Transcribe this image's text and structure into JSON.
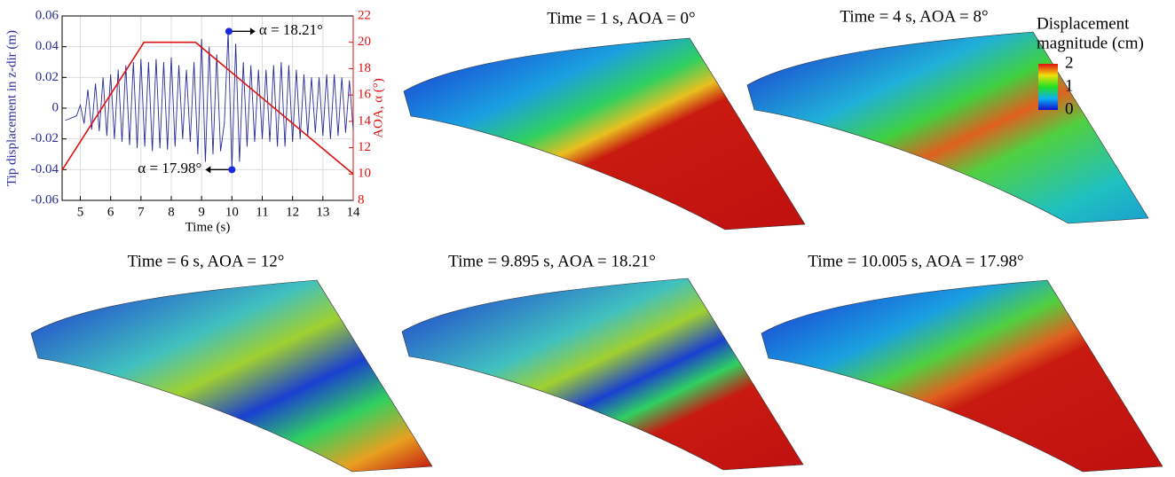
{
  "chart_data": {
    "type": "line",
    "xlabel": "Time (s)",
    "ylabel": "Tip displacement in z-dir (m)",
    "y2label": "AOA, α (°)",
    "xlim": [
      4.4,
      14
    ],
    "xticks": [
      5,
      6,
      7,
      8,
      9,
      10,
      11,
      12,
      13,
      14
    ],
    "ylim": [
      -0.06,
      0.06
    ],
    "yticks": [
      -0.06,
      -0.04,
      -0.02,
      0,
      0.02,
      0.04,
      0.06
    ],
    "y2lim": [
      8,
      22
    ],
    "y2ticks": [
      8,
      10,
      12,
      14,
      16,
      18,
      20,
      22
    ],
    "grid": true,
    "series": [
      {
        "color": "#2a2a9a",
        "x": [
          4.5,
          4.625,
          4.75,
          4.875,
          5,
          5.125,
          5.25,
          5.375,
          5.5,
          5.625,
          5.75,
          5.875,
          6,
          6.125,
          6.25,
          6.375,
          6.5,
          6.625,
          6.75,
          6.875,
          7,
          7.125,
          7.25,
          7.375,
          7.5,
          7.625,
          7.75,
          7.875,
          8,
          8.125,
          8.25,
          8.375,
          8.5,
          8.625,
          8.75,
          8.875,
          9,
          9.125,
          9.25,
          9.375,
          9.5,
          9.625,
          9.75,
          9.875,
          10,
          10.125,
          10.25,
          10.375,
          10.5,
          10.625,
          10.75,
          10.875,
          11,
          11.125,
          11.25,
          11.375,
          11.5,
          11.625,
          11.75,
          11.875,
          12,
          12.125,
          12.25,
          12.375,
          12.5,
          12.625,
          12.75,
          12.875,
          13,
          13.125,
          13.25,
          13.375,
          13.5,
          13.625,
          13.75,
          13.875,
          14
        ],
        "values": [
          -0.008,
          -0.007,
          -0.006,
          -0.005,
          0.002,
          -0.01,
          0.012,
          -0.014,
          0.016,
          -0.015,
          0.02,
          -0.018,
          0.022,
          -0.02,
          0.025,
          -0.022,
          0.028,
          -0.024,
          0.03,
          -0.026,
          0.032,
          -0.025,
          0.03,
          -0.028,
          0.032,
          -0.026,
          0.03,
          -0.027,
          0.033,
          -0.025,
          0.028,
          -0.02,
          0.025,
          -0.022,
          0.03,
          -0.03,
          0.045,
          -0.035,
          0.04,
          -0.03,
          0.035,
          -0.028,
          -0.01,
          0.05,
          -0.04,
          0.042,
          -0.035,
          0.03,
          -0.025,
          0.028,
          -0.022,
          0.025,
          -0.02,
          0.025,
          -0.022,
          0.028,
          -0.025,
          0.03,
          -0.025,
          0.028,
          -0.022,
          0.025,
          -0.02,
          0.022,
          -0.018,
          0.02,
          -0.016,
          0.02,
          -0.018,
          0.022,
          -0.02,
          0.022,
          -0.018,
          0.02,
          -0.016,
          0.018,
          -0.014
        ]
      },
      {
        "color": "#e01010",
        "axis": "y2",
        "x": [
          4.4,
          7.1,
          8.8,
          14
        ],
        "values": [
          10.3,
          20,
          20,
          10
        ]
      }
    ],
    "annotations": [
      {
        "text": "α = 18.21°",
        "x": 9.9,
        "y": 0.05
      },
      {
        "text": "α = 17.98°",
        "x": 10,
        "y": -0.04
      }
    ]
  },
  "panels": [
    {
      "title": "Time = 1 s, AOA = 0°"
    },
    {
      "title": "Time = 4 s, AOA = 8°"
    },
    {
      "title": "Time = 6 s, AOA = 12°"
    },
    {
      "title": "Time = 9.895 s, AOA = 18.21°"
    },
    {
      "title": "Time = 10.005 s, AOA = 17.98°"
    }
  ],
  "colorbar": {
    "title": [
      "Displacement",
      "magnitude (cm)"
    ],
    "lim": [
      0,
      2
    ],
    "ticks": [
      0,
      1,
      2
    ]
  }
}
